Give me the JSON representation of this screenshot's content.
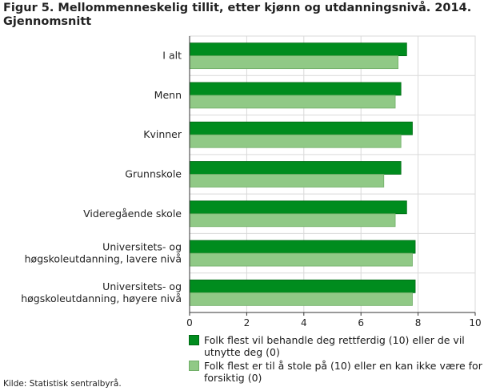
{
  "chart_data": {
    "type": "bar",
    "orientation": "horizontal",
    "title": "Figur 5. Mellommenneskelig tillit, etter kjønn og utdanningsnivå. 2014. Gjennomsnitt",
    "categories": [
      "I alt",
      "Menn",
      "Kvinner",
      "Grunnskole",
      "Videregående skole",
      "Universitets- og høgskoleutdanning, lavere nivå",
      "Universitets- og høgskoleutdanning, høyere nivå"
    ],
    "category_lines": [
      [
        "I alt"
      ],
      [
        "Menn"
      ],
      [
        "Kvinner"
      ],
      [
        "Grunnskole"
      ],
      [
        "Videregående skole"
      ],
      [
        "Universitets- og",
        "høgskoleutdanning, lavere nivå"
      ],
      [
        "Universitets- og",
        "høgskoleutdanning, høyere nivå"
      ]
    ],
    "series": [
      {
        "name": "Folk flest vil behandle deg rettferdig (10) eller de vil utnytte deg (0)",
        "color": "#008c1e",
        "values": [
          7.6,
          7.4,
          7.8,
          7.4,
          7.6,
          7.9,
          7.9
        ]
      },
      {
        "name": "Folk flest er til å stole på (10) eller en kan ikke være for forsiktig (0)",
        "color": "#90c986",
        "values": [
          7.3,
          7.2,
          7.4,
          6.8,
          7.2,
          7.8,
          7.8
        ]
      }
    ],
    "xlim": [
      0,
      10
    ],
    "xticks": [
      "0",
      "2",
      "4",
      "6",
      "8",
      "10"
    ],
    "xlabel": "",
    "ylabel": "",
    "grid": true,
    "legend_position": "bottom"
  },
  "source": "Kilde: Statistisk sentralbyrå."
}
